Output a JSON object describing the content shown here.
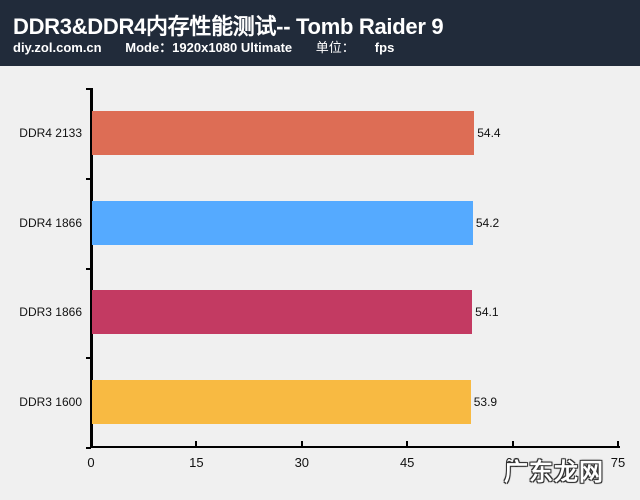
{
  "header": {
    "title": "DDR3&DDR4内存性能测试-- Tomb Raider 9",
    "site": "diy.zol.com.cn",
    "mode": "Mode：1920x1080 Ultimate",
    "unit_label": "单位：",
    "unit_value": "fps"
  },
  "watermark": "广东龙网",
  "colors": {
    "header_bg": "#212b3a",
    "background": "#f0f0f0",
    "ddr4_2133": "#dd6d55",
    "ddr4_1866": "#55aaff",
    "ddr3_1866": "#c33a62",
    "ddr3_1600": "#f8ba42"
  },
  "chart_data": {
    "type": "bar",
    "orientation": "horizontal",
    "title": "DDR3&DDR4内存性能测试-- Tomb Raider 9",
    "subtitle": "diy.zol.com.cn  Mode：1920x1080 Ultimate  单位：fps",
    "categories": [
      "DDR4 2133",
      "DDR4 1866",
      "DDR3 1866",
      "DDR3 1600"
    ],
    "values": [
      54.4,
      54.2,
      54.1,
      53.9
    ],
    "value_labels": [
      "54.4",
      "54.2",
      "54.1",
      "53.9"
    ],
    "bar_colors": [
      "#dd6d55",
      "#55aaff",
      "#c33a62",
      "#f8ba42"
    ],
    "xlabel": "",
    "ylabel": "",
    "unit": "fps",
    "xlim": [
      0,
      75
    ],
    "xticks": [
      "0",
      "15",
      "30",
      "45",
      "60",
      "75"
    ],
    "grid": false,
    "legend": null
  }
}
